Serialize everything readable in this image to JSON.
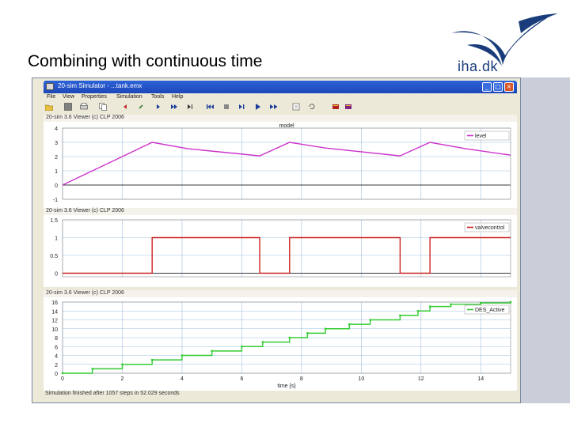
{
  "slide": {
    "title": "Combining with continuous time",
    "logo_text": "iha.dk"
  },
  "window": {
    "title": "20-sim Simulator - ...tank.emx",
    "menu": [
      "File",
      "View",
      "Properties",
      "Simulation",
      "Tools",
      "Help"
    ],
    "status": "Simulation finished after 1057 steps in 52.029 seconds"
  },
  "toolbar_icons": [
    "open-icon",
    "save-icon",
    "print-icon",
    "copy-icon",
    "step-back-icon",
    "step-icon",
    "step-forward-icon",
    "skip-icon",
    "next-icon",
    "rewind-icon",
    "stop-icon",
    "play-icon",
    "play-step-icon",
    "fast-forward-icon",
    "options-icon",
    "reset-icon",
    "book-icon",
    "help-book-icon"
  ],
  "colors": {
    "level": "#cc33cc",
    "valvecontrol": "#cc2222",
    "counter": "#33cc33",
    "axis": "#000000",
    "grid": "#9fbfe0"
  },
  "chart_data": [
    {
      "type": "line",
      "header": "20-sim 3.6 Viewer (c) CLP 2006",
      "title": "model",
      "legend": [
        "level"
      ],
      "legend_placement": "top-right",
      "xlim": [
        0,
        15
      ],
      "ylim": [
        -1,
        4
      ],
      "yticks": [
        -1,
        0,
        1,
        2,
        3,
        4
      ],
      "grid": true,
      "series": [
        {
          "name": "level",
          "x": [
            0,
            3,
            4.2,
            6.6,
            7.6,
            8.8,
            11.3,
            12.3,
            13.5,
            15
          ],
          "y": [
            0,
            3,
            2.55,
            2.05,
            3,
            2.6,
            2.05,
            3,
            2.55,
            2.1
          ]
        }
      ]
    },
    {
      "type": "line",
      "header": "20-sim 3.6 Viewer (c) CLP 2006",
      "legend": [
        "valvecontrol"
      ],
      "legend_placement": "top-right",
      "xlim": [
        0,
        15
      ],
      "ylim": [
        -0.1,
        1.5
      ],
      "yticks": [
        0,
        0.5,
        1,
        1.5
      ],
      "grid": true,
      "series": [
        {
          "name": "valvecontrol",
          "x": [
            0,
            3,
            3,
            6.6,
            6.6,
            7.6,
            7.6,
            11.3,
            11.3,
            12.3,
            12.3,
            15
          ],
          "y": [
            0,
            0,
            1,
            1,
            0,
            0,
            1,
            1,
            0,
            0,
            1,
            1
          ]
        }
      ]
    },
    {
      "type": "line",
      "header": "20-sim 3.6 Viewer (c) CLP 2006",
      "legend": [
        "DES_Active"
      ],
      "legend_placement": "top-right",
      "xlim": [
        0,
        15
      ],
      "ylim": [
        0,
        16
      ],
      "yticks": [
        0,
        2,
        4,
        6,
        8,
        10,
        12,
        14,
        16
      ],
      "xticks": [
        0,
        2,
        4,
        6,
        8,
        10,
        12,
        14
      ],
      "xlabel": "time {s}",
      "grid": true,
      "series": [
        {
          "name": "DES_Active",
          "x": [
            0,
            1,
            2,
            3,
            4,
            5,
            6,
            6.7,
            7.6,
            8.2,
            8.8,
            9.6,
            10.3,
            11.3,
            11.9,
            12.3,
            13,
            14,
            15
          ],
          "y": [
            0,
            1,
            2,
            3,
            4,
            5,
            6,
            7,
            8,
            9,
            10,
            11,
            12,
            13,
            14,
            15,
            15.5,
            15.8,
            16
          ]
        }
      ]
    }
  ]
}
